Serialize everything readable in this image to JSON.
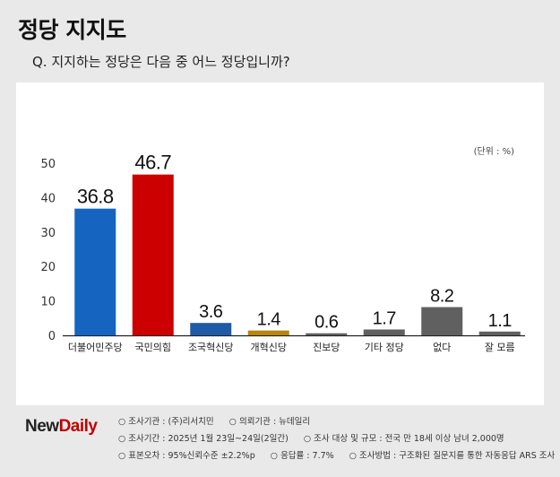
{
  "title": "정당 지지도",
  "question": "Q. 지지하는 정당은 다음 중 어느 정당입니까?",
  "logo": {
    "part1": "New",
    "part2": "Daily"
  },
  "notes": {
    "row1": [
      "○ 조사기관 : (주)리서치민",
      "○ 의뢰기관 : 뉴데일리"
    ],
    "row2": [
      "○ 조사기간 : 2025년 1월 23일~24일(2일간)",
      "○ 조사 대상 및 규모 : 전국 만 18세 이상 남녀 2,000명"
    ],
    "row3": [
      "○ 표본오차 : 95%신뢰수준 ±2.2%p",
      "○ 응답률 : 7.7%",
      "○ 조사방법 : 구조화된 질문지를 통한 자동응답 ARS 조사"
    ]
  },
  "chart_data": {
    "type": "bar",
    "unit_label": "(단위 : %)",
    "categories": [
      "더불어민주당",
      "국민의힘",
      "조국혁신당",
      "개혁신당",
      "진보당",
      "기타 정당",
      "없다",
      "잘 모름"
    ],
    "values": [
      36.8,
      46.7,
      3.6,
      1.4,
      0.6,
      1.7,
      8.2,
      1.1
    ],
    "value_labels": [
      "36.8",
      "46.7",
      "3.6",
      "1.4",
      "0.6",
      "1.7",
      "8.2",
      "1.1"
    ],
    "bar_colors": [
      "#1565c0",
      "#cc0000",
      "#1f5aa6",
      "#b8860b",
      "#606060",
      "#606060",
      "#606060",
      "#606060"
    ],
    "yticks": [
      "0",
      "10",
      "20",
      "30",
      "40",
      "50"
    ],
    "ylim": [
      0,
      50
    ],
    "grid": false,
    "legend": "none"
  }
}
